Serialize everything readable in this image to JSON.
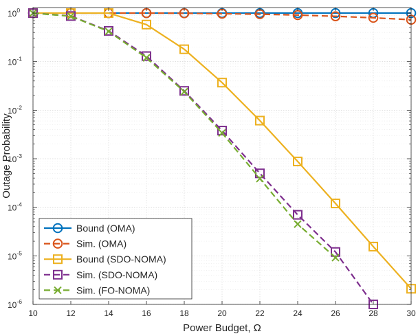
{
  "chart_data": {
    "type": "line",
    "title": "",
    "xlabel": "Power Budget, Ω",
    "ylabel": "Outage Probability",
    "xlim": [
      10,
      30
    ],
    "ylim": [
      1e-06,
      1.3
    ],
    "yscale": "log",
    "grid": true,
    "minor_grid": true,
    "legend_position": "bottom-left",
    "x_ticks": [
      "10",
      "12",
      "14",
      "16",
      "18",
      "20",
      "22",
      "24",
      "26",
      "28",
      "30"
    ],
    "y_ticks": [
      {
        "base": "10",
        "exp": "-6"
      },
      {
        "base": "10",
        "exp": "-5"
      },
      {
        "base": "10",
        "exp": "-4"
      },
      {
        "base": "10",
        "exp": "-3"
      },
      {
        "base": "10",
        "exp": "-2"
      },
      {
        "base": "10",
        "exp": "-1"
      },
      {
        "base": "10",
        "exp": "0"
      }
    ],
    "series": [
      {
        "name": "Bound (OMA)",
        "color": "#0072BD",
        "line_style": "solid",
        "marker": "circle",
        "x": [
          10,
          12,
          14,
          16,
          18,
          20,
          22,
          24,
          26,
          28,
          30
        ],
        "y": [
          1,
          1,
          1,
          1,
          1,
          1,
          1,
          1,
          1,
          1,
          1
        ]
      },
      {
        "name": "Sim. (OMA)",
        "color": "#D95319",
        "line_style": "dashed",
        "marker": "circle",
        "x": [
          10,
          12,
          14,
          16,
          18,
          20,
          22,
          24,
          26,
          28,
          30
        ],
        "y": [
          1,
          1,
          1,
          1,
          0.99,
          0.97,
          0.95,
          0.91,
          0.86,
          0.8,
          0.73
        ]
      },
      {
        "name": "Bound (SDO-NOMA)",
        "color": "#EDB120",
        "line_style": "solid",
        "marker": "square",
        "x": [
          10,
          12,
          14,
          16,
          18,
          20,
          22,
          24,
          26,
          28,
          30
        ],
        "y": [
          1,
          1,
          1,
          0.58,
          0.18,
          0.037,
          0.0061,
          0.00088,
          0.00012,
          1.55e-05,
          2.1e-06
        ]
      },
      {
        "name": "Sim. (SDO-NOMA)",
        "color": "#7E2F8E",
        "line_style": "dashed",
        "marker": "square",
        "x": [
          10,
          12,
          14,
          16,
          18,
          20,
          22,
          24,
          26,
          28
        ],
        "y": [
          1,
          0.87,
          0.43,
          0.13,
          0.025,
          0.0038,
          0.0005,
          7e-05,
          1.2e-05,
          1e-06
        ]
      },
      {
        "name": "Sim. (FO-NOMA)",
        "color": "#77AC30",
        "line_style": "dashed",
        "marker": "x",
        "x": [
          10,
          12,
          14,
          16,
          18,
          20,
          22,
          24,
          26
        ],
        "y": [
          1,
          0.86,
          0.42,
          0.12,
          0.024,
          0.0034,
          0.00039,
          4.5e-05,
          9.2e-06
        ]
      }
    ]
  }
}
